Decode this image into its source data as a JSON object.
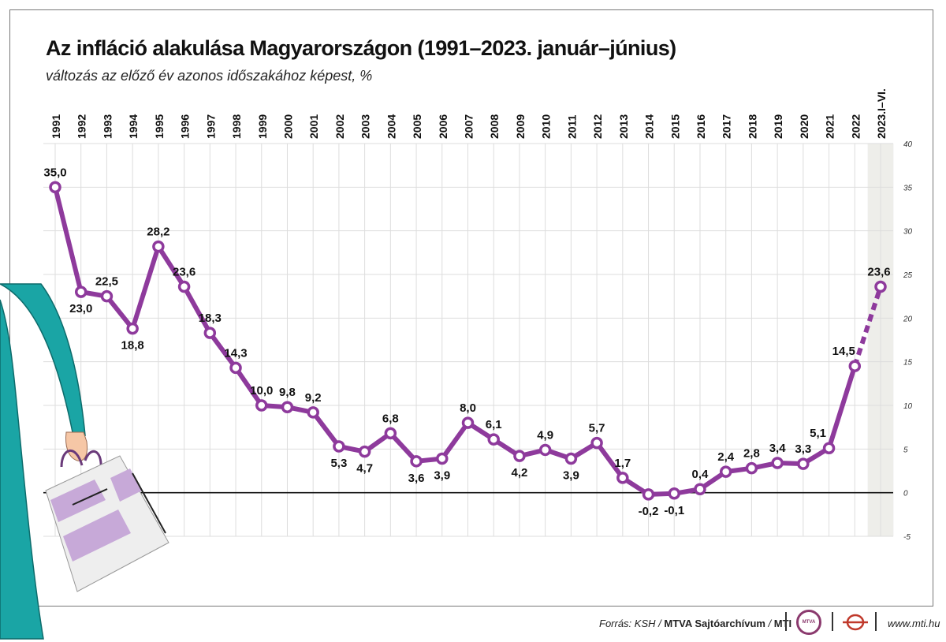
{
  "title": "Az infláció alakulása Magyarországon (1991–2023. január–június)",
  "subtitle": "változás az előző év azonos időszakához képest, %",
  "footer": {
    "source_prefix": "Forrás: KSH / ",
    "source_archive": "MTVA Sajtóarchívum",
    "source_sep": " / ",
    "source_mti": "MTI",
    "website": "www.mti.hu",
    "mtva_logo_text": "MTVA"
  },
  "colors": {
    "line": "#8e3a9c",
    "zero_line": "#111111",
    "grid": "#dddddd",
    "highlight_band": "#eeeeea",
    "coat": "#1aa5a5",
    "bag_stripe": "#c7a9d8"
  },
  "chart_data": {
    "type": "line",
    "title": "Az infláció alakulása Magyarországon (1991–2023. január–június)",
    "subtitle": "változás az előző év azonos időszakához képest, %",
    "categories": [
      "1991",
      "1992",
      "1993",
      "1994",
      "1995",
      "1996",
      "1997",
      "1998",
      "1999",
      "2000",
      "2001",
      "2002",
      "2003",
      "2004",
      "2005",
      "2006",
      "2007",
      "2008",
      "2009",
      "2010",
      "2011",
      "2012",
      "2013",
      "2014",
      "2015",
      "2016",
      "2017",
      "2018",
      "2019",
      "2020",
      "2021",
      "2022",
      "2023.I–VI."
    ],
    "series": [
      {
        "values": [
          35.0,
          23.0,
          22.5,
          18.8,
          28.2,
          23.6,
          18.3,
          14.3,
          10.0,
          9.8,
          9.2,
          5.3,
          4.7,
          6.8,
          3.6,
          3.9,
          8.0,
          6.1,
          4.2,
          4.9,
          3.9,
          5.7,
          1.7,
          -0.2,
          -0.1,
          0.4,
          2.4,
          2.8,
          3.4,
          3.3,
          5.1,
          14.5,
          23.6
        ],
        "data_labels": [
          "35,0",
          "23,0",
          "22,5",
          "18,8",
          "28,2",
          "23,6",
          "18,3",
          "14,3",
          "10,0",
          "9,8",
          "9,2",
          "5,3",
          "4,7",
          "6,8",
          "3,6",
          "3,9",
          "8,0",
          "6,1",
          "4,2",
          "4,9",
          "3,9",
          "5,7",
          "1,7",
          "-0,2",
          "-0,1",
          "0,4",
          "2,4",
          "2,8",
          "3,4",
          "3,3",
          "5,1",
          "14,5",
          "23,6"
        ]
      }
    ],
    "dashed_last_segment": true,
    "highlighted_category": "2023.I–VI.",
    "ylim": [
      -5,
      40
    ],
    "yticks": [
      40,
      35,
      30,
      25,
      20,
      15,
      10,
      5,
      0,
      -5
    ],
    "ytick_position": "right",
    "xtick_position": "top",
    "grid": true
  }
}
